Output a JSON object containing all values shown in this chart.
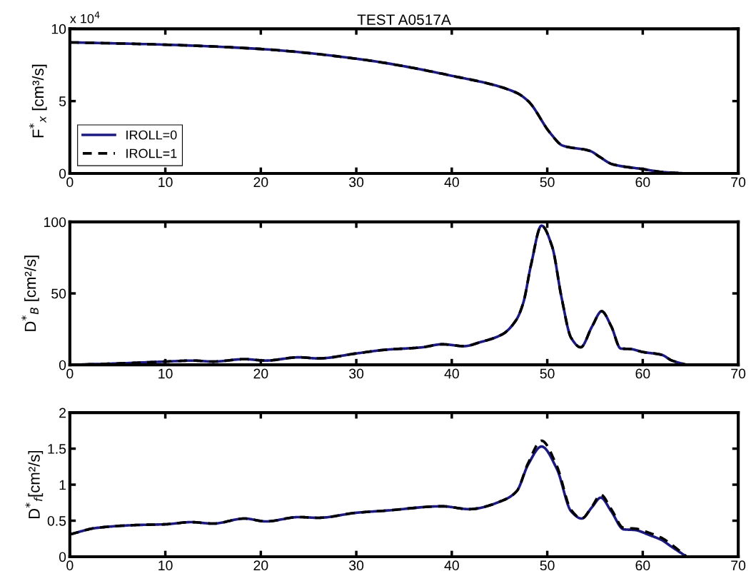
{
  "chart_data": [
    {
      "type": "line",
      "title": "TEST A0517A",
      "ylabel": "F$^{*}$$_{x}$ [cm³/s]",
      "annotations": [
        "x 10$^{4}$"
      ],
      "xlim": [
        0,
        70
      ],
      "xticks": [
        0,
        10,
        20,
        30,
        40,
        50,
        60,
        70
      ],
      "ylim": [
        0,
        10
      ],
      "yticks": [
        0,
        5,
        10
      ],
      "legend": "bottom left",
      "grid": false,
      "series": [
        {
          "name": "IROLL=0",
          "color": "#1c1a80",
          "line_style": "solid",
          "x": [
            0,
            10,
            20,
            30,
            40,
            46.7,
            48.0,
            50.3,
            51.6,
            54.5,
            55.5,
            56.8,
            60.1,
            62,
            64.5
          ],
          "values": [
            9.06,
            8.9,
            8.6,
            7.93,
            6.75,
            5.6,
            5.0,
            2.8,
            1.93,
            1.55,
            1.14,
            0.64,
            0.29,
            0.1,
            0
          ]
        },
        {
          "name": "IROLL=1",
          "color": "#000000",
          "line_style": "dashed",
          "x": [
            0,
            10,
            20,
            30,
            40,
            46.7,
            48.0,
            50.3,
            51.6,
            54.5,
            55.5,
            56.8,
            60.1,
            62,
            64.5
          ],
          "values": [
            9.06,
            8.9,
            8.6,
            7.93,
            6.75,
            5.6,
            5.0,
            2.8,
            1.93,
            1.55,
            1.14,
            0.64,
            0.29,
            0.1,
            0
          ]
        }
      ]
    },
    {
      "type": "line",
      "ylabel": "D$^{*}$$_{B}$ [cm²/s]",
      "xlim": [
        0,
        70
      ],
      "xticks": [
        0,
        10,
        20,
        30,
        40,
        50,
        60,
        70
      ],
      "ylim": [
        0,
        100
      ],
      "yticks": [
        0,
        50,
        100
      ],
      "grid": false,
      "series": [
        {
          "color": "#1c1a80",
          "line_style": "solid",
          "x": [
            0,
            5,
            10,
            12.9,
            15,
            18.3,
            20.5,
            24,
            26,
            30,
            33.1,
            36.8,
            39.0,
            41.3,
            43.0,
            45.3,
            46.8,
            47.5,
            48.3,
            49.4,
            50.5,
            51.5,
            52.5,
            53.5,
            54.7,
            55.7,
            56.7,
            57.7,
            58.7,
            60.0,
            62.0,
            63.0,
            64.6
          ],
          "values": [
            0,
            1,
            2.3,
            3,
            2.3,
            4,
            3,
            5.3,
            4.5,
            8,
            10.6,
            12.2,
            14.4,
            13.1,
            15.9,
            21.4,
            32,
            43.7,
            70,
            97.4,
            83,
            47,
            18.9,
            12.3,
            27,
            37.5,
            27,
            11.4,
            11.1,
            9,
            7,
            3.2,
            0
          ]
        },
        {
          "color": "#000000",
          "line_style": "dashed",
          "x": [
            0,
            5,
            10,
            12.9,
            15,
            18.3,
            20.5,
            24,
            26,
            30,
            33.1,
            36.8,
            39.0,
            41.3,
            43.0,
            45.3,
            46.8,
            47.5,
            48.3,
            49.4,
            50.5,
            51.5,
            52.5,
            53.5,
            54.7,
            55.7,
            56.7,
            57.7,
            58.7,
            60.0,
            62.0,
            63.0,
            64.6
          ],
          "values": [
            0,
            1,
            2.3,
            3,
            2.3,
            4,
            3,
            5.3,
            4.5,
            8,
            10.6,
            12.2,
            14.4,
            13.1,
            15.9,
            21.4,
            32,
            43.7,
            70,
            97.4,
            83,
            47,
            18.9,
            12.3,
            27,
            37.5,
            27,
            11.4,
            11.1,
            9,
            7,
            3.2,
            0
          ]
        }
      ]
    },
    {
      "type": "line",
      "ylabel": "D$^{*}$$_{f}$[cm²/s]",
      "xlim": [
        0,
        70
      ],
      "xticks": [
        0,
        10,
        20,
        30,
        40,
        50,
        60,
        70
      ],
      "ylim": [
        0,
        2
      ],
      "yticks": [
        0,
        0.5,
        1,
        1.5,
        2
      ],
      "grid": false,
      "series": [
        {
          "color": "#1c1a80",
          "line_style": "solid",
          "x": [
            0,
            2.8,
            7,
            10,
            12.7,
            15,
            18.3,
            20.5,
            24,
            26,
            30,
            33.1,
            39.0,
            41.8,
            45.5,
            46.8,
            48.0,
            49.4,
            51.0,
            52.5,
            53.6,
            54.7,
            55.6,
            56.7,
            58.0,
            59.2,
            60.7,
            62.0,
            63.0,
            64.6
          ],
          "values": [
            0.31,
            0.4,
            0.44,
            0.45,
            0.48,
            0.46,
            0.53,
            0.49,
            0.55,
            0.54,
            0.61,
            0.64,
            0.7,
            0.66,
            0.79,
            0.91,
            1.28,
            1.53,
            1.22,
            0.63,
            0.53,
            0.69,
            0.82,
            0.63,
            0.38,
            0.37,
            0.3,
            0.23,
            0.14,
            0
          ]
        },
        {
          "color": "#000000",
          "line_style": "dashed",
          "x": [
            0,
            2.8,
            7,
            10,
            12.7,
            15,
            18.3,
            20.5,
            24,
            26,
            30,
            33.1,
            39.0,
            41.8,
            45.5,
            46.8,
            48.0,
            49.4,
            51.0,
            52.5,
            53.6,
            54.7,
            55.6,
            56.7,
            58.0,
            59.2,
            60.7,
            62.0,
            63.0,
            64.6
          ],
          "values": [
            0.31,
            0.4,
            0.44,
            0.45,
            0.48,
            0.46,
            0.53,
            0.49,
            0.55,
            0.54,
            0.61,
            0.64,
            0.7,
            0.66,
            0.79,
            0.91,
            1.3,
            1.61,
            1.26,
            0.65,
            0.53,
            0.7,
            0.86,
            0.66,
            0.4,
            0.39,
            0.33,
            0.26,
            0.17,
            0
          ]
        }
      ]
    }
  ]
}
